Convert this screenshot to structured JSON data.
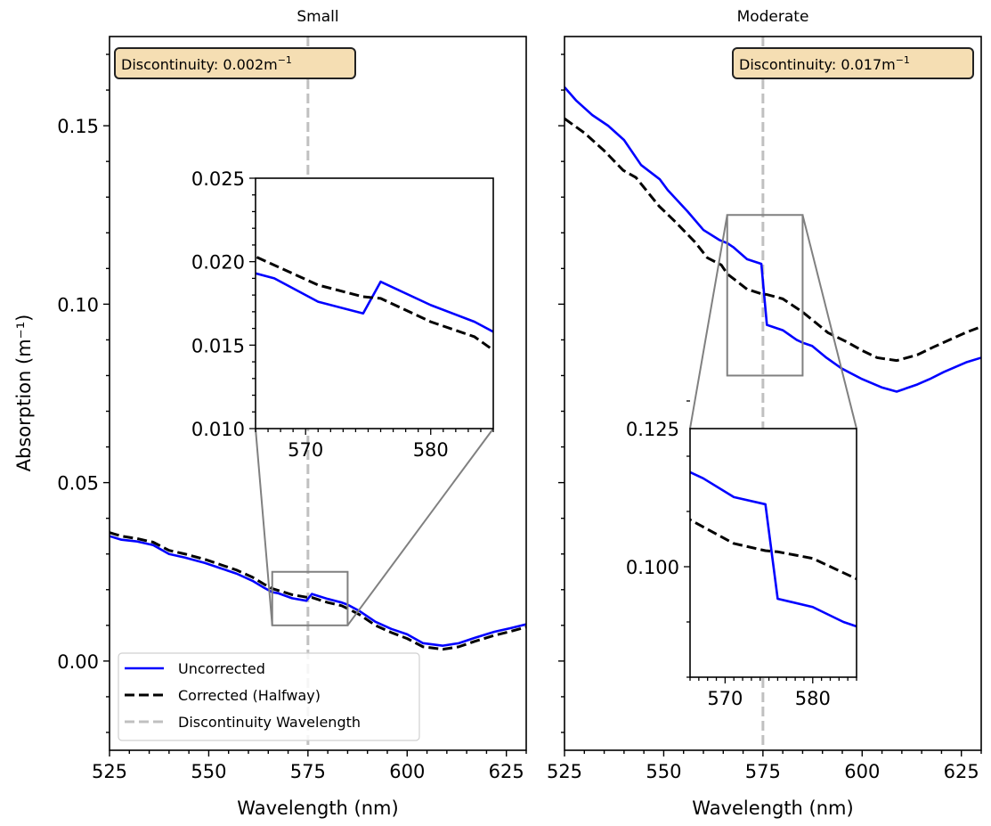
{
  "chart_data": {
    "type": "line",
    "ylabel": "Absorption (m⁻¹)",
    "shared_y": true,
    "legend": {
      "location": "lower-left",
      "panel": "Small",
      "entries": [
        {
          "label": "Uncorrected",
          "color": "#0000ff",
          "style": "solid"
        },
        {
          "label": "Corrected (Halfway)",
          "color": "#000000",
          "style": "dashed"
        },
        {
          "label": "Discontinuity Wavelength",
          "color": "#c0c0c0",
          "style": "dashed"
        }
      ]
    },
    "colors": {
      "uncorrected": "#0000ff",
      "corrected": "#000000",
      "discontinuity_line": "#c0c0c0",
      "zoom_box": "#808080",
      "annotation_fill": "#f5deb3",
      "annotation_edge": "#222222"
    },
    "panels": [
      {
        "title": "Small",
        "xlabel": "Wavelength (nm)",
        "xlim": [
          525,
          630
        ],
        "ylim": [
          -0.025,
          0.175
        ],
        "xticks": [
          525,
          550,
          575,
          600,
          625
        ],
        "xtick_labels": [
          "525",
          "550",
          "575",
          "600",
          "625"
        ],
        "yticks": [
          0.0,
          0.05,
          0.1,
          0.15
        ],
        "ytick_labels": [
          "0.00",
          "0.05",
          "0.10",
          "0.15"
        ],
        "show_ytick_labels": true,
        "discontinuity_wavelength": 575,
        "annotation": {
          "prefix": "Discontinuity: 0.002m",
          "sup": "−1",
          "location": "top-left"
        },
        "series": [
          {
            "name": "Uncorrected",
            "x": [
              525,
              528,
              532,
              536,
              540,
              544,
              549,
              553,
              557,
              561,
              564,
              566,
              567.5,
              571,
              574.6,
              576,
              580,
              583.5,
              585,
              588,
              592,
              596,
              600,
              604,
              609,
              613,
              617,
              622,
              626,
              630
            ],
            "y": [
              0.035,
              0.034,
              0.0335,
              0.0325,
              0.03,
              0.029,
              0.0275,
              0.026,
              0.0245,
              0.0225,
              0.0205,
              0.0193,
              0.019,
              0.0176,
              0.0169,
              0.0188,
              0.0174,
              0.0164,
              0.0158,
              0.014,
              0.011,
              0.009,
              0.0075,
              0.005,
              0.0043,
              0.005,
              0.0065,
              0.0082,
              0.0092,
              0.0103
            ]
          },
          {
            "name": "Corrected (Halfway)",
            "x": [
              525,
              528,
              532,
              536,
              540,
              544,
              549,
              553,
              557,
              561,
              564,
              566,
              571,
              574.6,
              576,
              580,
              583.5,
              585,
              588,
              592,
              596,
              600,
              604,
              609,
              613,
              617,
              622,
              626,
              630
            ],
            "y": [
              0.036,
              0.035,
              0.0343,
              0.0333,
              0.031,
              0.03,
              0.0285,
              0.027,
              0.0255,
              0.0235,
              0.0215,
              0.0203,
              0.0186,
              0.0179,
              0.0178,
              0.0164,
              0.0155,
              0.0147,
              0.013,
              0.01,
              0.008,
              0.0063,
              0.004,
              0.0033,
              0.004,
              0.0055,
              0.0072,
              0.0083,
              0.0095
            ]
          }
        ],
        "inset": {
          "xlim": [
            566,
            585
          ],
          "ylim": [
            0.01,
            0.025
          ],
          "xticks": [
            570,
            580
          ],
          "xtick_labels": [
            "570",
            "580"
          ],
          "yticks": [
            0.01,
            0.015,
            0.02,
            0.025
          ],
          "ytick_labels": [
            "0.010",
            "0.015",
            "0.020",
            "0.025"
          ],
          "placement": "upper-center"
        }
      },
      {
        "title": "Moderate",
        "xlabel": "Wavelength (nm)",
        "xlim": [
          525,
          630
        ],
        "ylim": [
          -0.025,
          0.175
        ],
        "xticks": [
          525,
          550,
          575,
          600,
          625
        ],
        "xtick_labels": [
          "525",
          "550",
          "575",
          "600",
          "625"
        ],
        "yticks": [
          0.0,
          0.05,
          0.1,
          0.15
        ],
        "ytick_labels": [
          "0.00",
          "0.05",
          "0.10",
          "0.15"
        ],
        "show_ytick_labels": false,
        "discontinuity_wavelength": 575,
        "annotation": {
          "prefix": "Discontinuity: 0.017m",
          "sup": "−1",
          "location": "top-right"
        },
        "series": [
          {
            "name": "Uncorrected",
            "x": [
              525,
              528,
              532,
              536,
              540,
              544.3,
              549,
              551,
              556,
              560,
              564,
              566,
              567.5,
              571,
              574.6,
              576,
              580,
              583.5,
              585,
              587.4,
              591,
              594.8,
              600,
              604.9,
              608.7,
              613.9,
              617,
              620.6,
              626.2,
              630
            ],
            "y": [
              0.1608,
              0.157,
              0.153,
              0.15,
              0.146,
              0.139,
              0.135,
              0.132,
              0.126,
              0.1208,
              0.118,
              0.1171,
              0.116,
              0.1126,
              0.1113,
              0.0942,
              0.0927,
              0.09,
              0.0892,
              0.0883,
              0.085,
              0.082,
              0.079,
              0.0767,
              0.0755,
              0.0775,
              0.079,
              0.081,
              0.0837,
              0.085
            ]
          },
          {
            "name": "Corrected (Halfway)",
            "x": [
              525,
              530,
              535,
              539.8,
              543,
              548.8,
              553,
              557.8,
              561,
              564.5,
              566,
              571,
              574.6,
              576,
              580,
              583.5,
              585,
              587,
              591.4,
              596,
              600,
              603.8,
              608.7,
              613.9,
              618,
              622.8,
              626,
              630
            ],
            "y": [
              0.152,
              0.148,
              0.143,
              0.1375,
              0.1355,
              0.1275,
              0.123,
              0.1175,
              0.113,
              0.111,
              0.1085,
              0.1042,
              0.1029,
              0.1027,
              0.1015,
              0.0989,
              0.0978,
              0.096,
              0.092,
              0.0895,
              0.087,
              0.085,
              0.0842,
              0.0858,
              0.088,
              0.0904,
              0.092,
              0.0937
            ]
          }
        ],
        "inset": {
          "xlim": [
            566,
            585
          ],
          "ylim": [
            0.08,
            0.125
          ],
          "xticks": [
            570,
            580
          ],
          "xtick_labels": [
            "570",
            "580"
          ],
          "yticks": [
            0.1,
            0.125
          ],
          "ytick_labels": [
            "0.100",
            "0.125"
          ],
          "placement": "lower-center"
        }
      }
    ]
  }
}
